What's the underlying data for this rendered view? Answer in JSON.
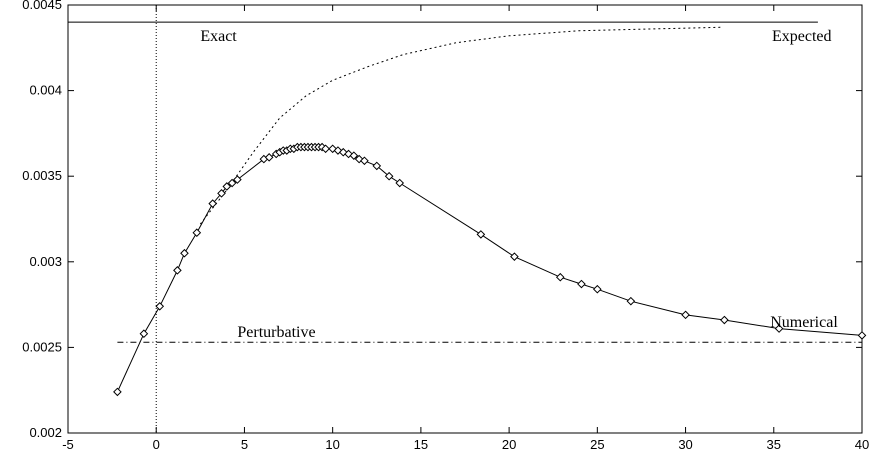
{
  "chart_data": {
    "type": "line",
    "title": "",
    "xlabel": "",
    "ylabel": "",
    "xlim": [
      -5,
      40
    ],
    "ylim": [
      0.002,
      0.0045
    ],
    "x_ticks": [
      -5,
      0,
      5,
      10,
      15,
      20,
      25,
      30,
      35,
      40
    ],
    "x_tick_labels": [
      "-5",
      "0",
      "5",
      "10",
      "15",
      "20",
      "25",
      "30",
      "35",
      "40"
    ],
    "y_ticks": [
      0.002,
      0.0025,
      0.003,
      0.0035,
      0.004,
      0.0045
    ],
    "y_tick_labels": [
      "0.002",
      "0.0025",
      "0.003",
      "0.0035",
      "0.004",
      "0.0045"
    ],
    "grid": false,
    "vertical_reference_x": 0,
    "series": [
      {
        "name": "Exact",
        "style": "solid",
        "x": [
          -5,
          37.5
        ],
        "y": [
          0.0044,
          0.0044
        ]
      },
      {
        "name": "Expected",
        "style": "dotted",
        "x": [
          2.5,
          4.0,
          5.5,
          7.0,
          8.5,
          10.0,
          12.0,
          14.0,
          17.0,
          20.0,
          24.0,
          28.0,
          32.0
        ],
        "y": [
          0.00322,
          0.00342,
          0.00364,
          0.00384,
          0.00397,
          0.00406,
          0.00414,
          0.00421,
          0.00428,
          0.00432,
          0.00435,
          0.00436,
          0.00437
        ]
      },
      {
        "name": "Perturbative",
        "style": "dash-dot",
        "x": [
          -2.2,
          40
        ],
        "y": [
          0.00253,
          0.00253
        ]
      },
      {
        "name": "Numerical",
        "style": "solid-diamond",
        "x": [
          -2.2,
          -0.7,
          0.2,
          1.2,
          1.6,
          2.3,
          3.2,
          3.7,
          4.0,
          4.3,
          4.6,
          6.1,
          6.4,
          6.8,
          7.0,
          7.2,
          7.4,
          7.6,
          7.8,
          8.0,
          8.2,
          8.4,
          8.6,
          8.8,
          9.0,
          9.2,
          9.4,
          9.6,
          10.0,
          10.3,
          10.6,
          10.9,
          11.2,
          11.5,
          11.8,
          12.5,
          13.2,
          13.8,
          18.4,
          20.3,
          22.9,
          24.1,
          25.0,
          26.9,
          30.0,
          32.2,
          35.3,
          40.0
        ],
        "y": [
          0.00224,
          0.00258,
          0.00274,
          0.00295,
          0.00305,
          0.00317,
          0.00334,
          0.0034,
          0.00344,
          0.00346,
          0.00348,
          0.0036,
          0.00361,
          0.00363,
          0.00364,
          0.00365,
          0.00365,
          0.00366,
          0.00366,
          0.00367,
          0.00367,
          0.00367,
          0.00367,
          0.00367,
          0.00367,
          0.00367,
          0.00367,
          0.00366,
          0.00366,
          0.00365,
          0.00364,
          0.00363,
          0.00362,
          0.0036,
          0.00359,
          0.00356,
          0.0035,
          0.00346,
          0.00316,
          0.00303,
          0.00291,
          0.00287,
          0.00284,
          0.00277,
          0.00269,
          0.00266,
          0.00261,
          0.00257
        ]
      }
    ],
    "labels": [
      {
        "series": "Exact",
        "text": "Exact",
        "x": 2.5,
        "y": 0.00429
      },
      {
        "series": "Expected",
        "text": "Expected",
        "x": 34.9,
        "y": 0.00429
      },
      {
        "series": "Numerical",
        "text": "Numerical",
        "x": 34.8,
        "y": 0.00262
      },
      {
        "series": "Perturbative",
        "text": "Perturbative",
        "x": 4.6,
        "y": 0.00256
      }
    ]
  }
}
